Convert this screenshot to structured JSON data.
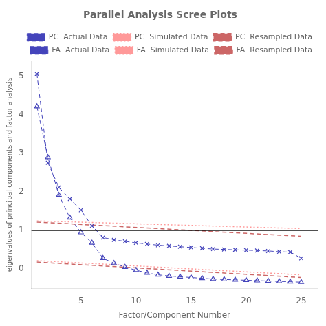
{
  "chart_data": {
    "type": "line",
    "title": "Parallel Analysis Scree Plots",
    "x_label": "Factor/Component Number",
    "y_label": "eigenvalues of principal components and factor analysis",
    "xlim": [
      0.5,
      26.5
    ],
    "ylim": [
      -0.5,
      5.4
    ],
    "xticks": [
      5,
      10,
      15,
      20,
      25
    ],
    "yticks": [
      0,
      1,
      2,
      3,
      4,
      5
    ],
    "grid": false,
    "legend": "upper right",
    "hline": {
      "y": 1.0,
      "color": "#000000"
    },
    "series": [
      {
        "name": "PC  Actual Data",
        "color": "#4444bb",
        "line_style": "dashed",
        "marker": "x",
        "x": [
          1,
          2,
          3,
          4,
          5,
          6,
          7,
          8,
          9,
          10,
          11,
          12,
          13,
          14,
          15,
          16,
          17,
          18,
          19,
          20,
          21,
          22,
          23,
          24,
          25
        ],
        "values": [
          5.07,
          2.76,
          2.12,
          1.82,
          1.53,
          1.12,
          0.82,
          0.76,
          0.72,
          0.68,
          0.65,
          0.62,
          0.6,
          0.58,
          0.56,
          0.54,
          0.52,
          0.51,
          0.5,
          0.49,
          0.48,
          0.47,
          0.45,
          0.44,
          0.28
        ]
      },
      {
        "name": "PC  Simulated Data",
        "color": "#ff9999",
        "line_style": "dotted",
        "marker": "none",
        "x": [
          1,
          25
        ],
        "values": [
          1.25,
          1.05
        ]
      },
      {
        "name": "PC  Resampled Data",
        "color": "#cc6666",
        "line_style": "dashed",
        "marker": "none",
        "x": [
          1,
          25
        ],
        "values": [
          1.22,
          0.85
        ]
      },
      {
        "name": "FA  Actual Data",
        "color": "#4444bb",
        "line_style": "dashed",
        "marker": "open_triangle",
        "x": [
          1,
          2,
          3,
          4,
          5,
          6,
          7,
          8,
          9,
          10,
          11,
          12,
          13,
          14,
          15,
          16,
          17,
          18,
          19,
          20,
          21,
          22,
          23,
          24,
          25
        ],
        "values": [
          4.22,
          2.9,
          1.92,
          1.33,
          0.95,
          0.68,
          0.28,
          0.15,
          0.05,
          -0.03,
          -0.1,
          -0.15,
          -0.18,
          -0.2,
          -0.22,
          -0.24,
          -0.26,
          -0.27,
          -0.28,
          -0.29,
          -0.3,
          -0.31,
          -0.32,
          -0.33,
          -0.34
        ]
      },
      {
        "name": "FA  Simulated Data",
        "color": "#ff9999",
        "line_style": "dotted",
        "marker": "none",
        "x": [
          1,
          25
        ],
        "values": [
          0.22,
          -0.15
        ]
      },
      {
        "name": "FA  Resampled Data",
        "color": "#cc6666",
        "line_style": "dashed",
        "marker": "none",
        "x": [
          1,
          25
        ],
        "values": [
          0.18,
          -0.22
        ]
      }
    ]
  }
}
